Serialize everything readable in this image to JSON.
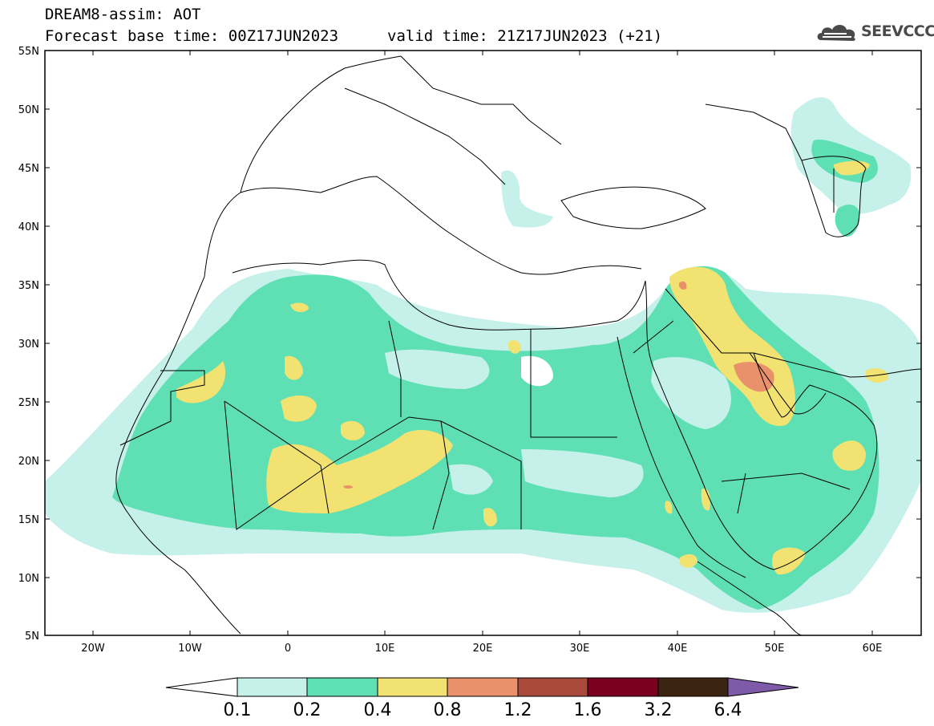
{
  "header": {
    "title": "DREAM8-assim: AOT",
    "base_time": "Forecast base time: 00Z17JUN2023",
    "valid_time": "valid time: 21Z17JUN2023 (+21)"
  },
  "logo": {
    "text": "SEEVCCC",
    "icon": "cloud-icon"
  },
  "map": {
    "lon_range": [
      -25,
      65
    ],
    "lat_range": [
      5,
      55
    ],
    "lat_ticks": [
      "55N",
      "50N",
      "45N",
      "40N",
      "35N",
      "30N",
      "25N",
      "20N",
      "15N",
      "10N",
      "5N"
    ],
    "lon_ticks": [
      "20W",
      "10W",
      "0",
      "10E",
      "20E",
      "30E",
      "40E",
      "50E",
      "60E"
    ]
  },
  "colorbar": {
    "labels": [
      "0.1",
      "0.2",
      "0.4",
      "0.8",
      "1.2",
      "1.6",
      "3.2",
      "6.4"
    ],
    "colors": [
      "#ffffff",
      "#c6f0ea",
      "#5fe0b4",
      "#f2e272",
      "#e8916a",
      "#a94a3a",
      "#7a0020",
      "#3b2412",
      "#7f5aa8"
    ]
  }
}
